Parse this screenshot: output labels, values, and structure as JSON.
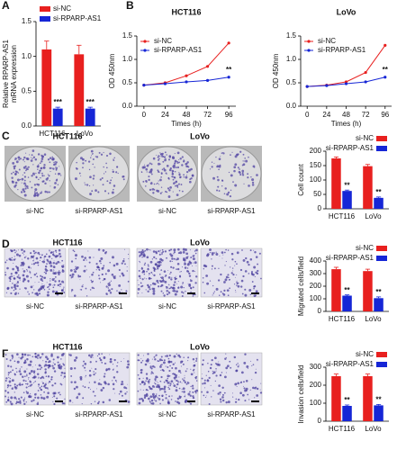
{
  "chart_data": [
    {
      "type": "bar",
      "ylabel": [
        "Relative RPARP-AS1",
        "mRNA expression"
      ],
      "categories": [
        "HCT116",
        "LoVo"
      ],
      "series": [
        {
          "name": "si-NC",
          "color": "#e8201f",
          "values": [
            1.1,
            1.03
          ],
          "errors": [
            0.12,
            0.13
          ]
        },
        {
          "name": "si-RPARP-AS1",
          "color": "#1626d6",
          "values": [
            0.25,
            0.25
          ],
          "errors": [
            0.02,
            0.02
          ],
          "sig_labels": [
            "***",
            "***"
          ]
        }
      ],
      "ylim": [
        0,
        1.5
      ],
      "yticks": [
        {
          "value": 0,
          "label": "0.0"
        },
        0.5,
        {
          "value": 1,
          "label": "1.0"
        },
        1.5
      ],
      "legend": "upper left"
    },
    {
      "type": "line",
      "title": "HCT116",
      "ylabel": [
        "OD 450nm"
      ],
      "xlabel": "Times (h)",
      "x": [
        0,
        24,
        48,
        72,
        96
      ],
      "series": [
        {
          "name": "si-NC",
          "color": "#e8201f",
          "values": [
            0.45,
            0.5,
            0.65,
            0.85,
            1.35
          ]
        },
        {
          "name": "si-RPARP-AS1",
          "color": "#1626d6",
          "values": [
            0.45,
            0.48,
            0.52,
            0.55,
            0.62
          ],
          "sig_labels": [
            null,
            null,
            null,
            null,
            "**"
          ]
        }
      ],
      "xlim": [
        -8,
        104
      ],
      "xticks": [
        0,
        24,
        48,
        72,
        96
      ],
      "ylim": [
        0,
        1.5
      ],
      "yticks": [
        {
          "value": 0,
          "label": "0.0"
        },
        0.5,
        {
          "value": 1,
          "label": "1.0"
        },
        1.5
      ],
      "legend": "upper left"
    },
    {
      "type": "line",
      "title": "LoVo",
      "ylabel": [
        "OD 450nm"
      ],
      "xlabel": "Times (h)",
      "x": [
        0,
        24,
        48,
        72,
        96
      ],
      "series": [
        {
          "name": "si-NC",
          "color": "#e8201f",
          "values": [
            0.42,
            0.45,
            0.52,
            0.72,
            1.3
          ]
        },
        {
          "name": "si-RPARP-AS1",
          "color": "#1626d6",
          "values": [
            0.42,
            0.44,
            0.48,
            0.52,
            0.62
          ],
          "sig_labels": [
            null,
            null,
            null,
            null,
            "**"
          ]
        }
      ],
      "xlim": [
        -8,
        104
      ],
      "xticks": [
        0,
        24,
        48,
        72,
        96
      ],
      "ylim": [
        0,
        1.5
      ],
      "yticks": [
        {
          "value": 0,
          "label": "0.0"
        },
        0.5,
        {
          "value": 1,
          "label": "1.0"
        },
        1.5
      ],
      "legend": "upper left"
    },
    {
      "type": "bar",
      "ylabel": [
        "Cell count"
      ],
      "categories": [
        "HCT116",
        "LoVo"
      ],
      "series": [
        {
          "name": "si-NC",
          "color": "#e8201f",
          "values": [
            175,
            148
          ],
          "errors": [
            5,
            6
          ]
        },
        {
          "name": "si-RPARP-AS1",
          "color": "#1626d6",
          "values": [
            62,
            38
          ],
          "errors": [
            3,
            3
          ],
          "sig_labels": [
            "**",
            "**"
          ]
        }
      ],
      "ylim": [
        0,
        200
      ],
      "yticks": [
        0,
        50,
        100,
        150,
        200
      ],
      "legend": "upper right"
    },
    {
      "type": "bar",
      "ylabel": [
        "Migrated cells/field"
      ],
      "categories": [
        "HCT116",
        "LoVo"
      ],
      "series": [
        {
          "name": "si-NC",
          "color": "#e8201f",
          "values": [
            335,
            320
          ],
          "errors": [
            15,
            15
          ]
        },
        {
          "name": "si-RPARP-AS1",
          "color": "#1626d6",
          "values": [
            125,
            105
          ],
          "errors": [
            6,
            10
          ],
          "sig_labels": [
            "**",
            "**"
          ]
        }
      ],
      "ylim": [
        0,
        400
      ],
      "yticks": [
        0,
        100,
        200,
        300,
        400
      ],
      "legend": "upper right"
    },
    {
      "type": "bar",
      "ylabel": [
        "Invasion cells/field"
      ],
      "categories": [
        "HCT116",
        "LoVo"
      ],
      "series": [
        {
          "name": "si-NC",
          "color": "#e8201f",
          "values": [
            250,
            250
          ],
          "errors": [
            12,
            12
          ]
        },
        {
          "name": "si-RPARP-AS1",
          "color": "#1626d6",
          "values": [
            85,
            88
          ],
          "errors": [
            5,
            5
          ],
          "sig_labels": [
            "**",
            "**"
          ]
        }
      ],
      "ylim": [
        0,
        300
      ],
      "yticks": [
        0,
        100,
        200,
        300
      ],
      "legend": "upper right"
    }
  ],
  "panel_labels": [
    "A",
    "B",
    "C",
    "D",
    "F"
  ],
  "image_panels": [
    {
      "groups": [
        {
          "title": "HCT116",
          "left": "si-NC",
          "right": "si-RPARP-AS1"
        },
        {
          "title": "LoVo",
          "left": "si-NC",
          "right": "si-RPARP-AS1"
        }
      ]
    },
    {
      "groups": [
        {
          "title": "HCT116",
          "left": "si-NC",
          "right": "si-RPARP-AS1"
        },
        {
          "title": "LoVo",
          "left": "si-NC",
          "right": "si-RPARP-AS1"
        }
      ]
    },
    {
      "groups": [
        {
          "title": "HCT116",
          "left": "si-NC",
          "right": "si-RPARP-AS1"
        },
        {
          "title": "LoVo",
          "left": "si-NC",
          "right": "si-RPARP-AS1"
        }
      ]
    }
  ]
}
